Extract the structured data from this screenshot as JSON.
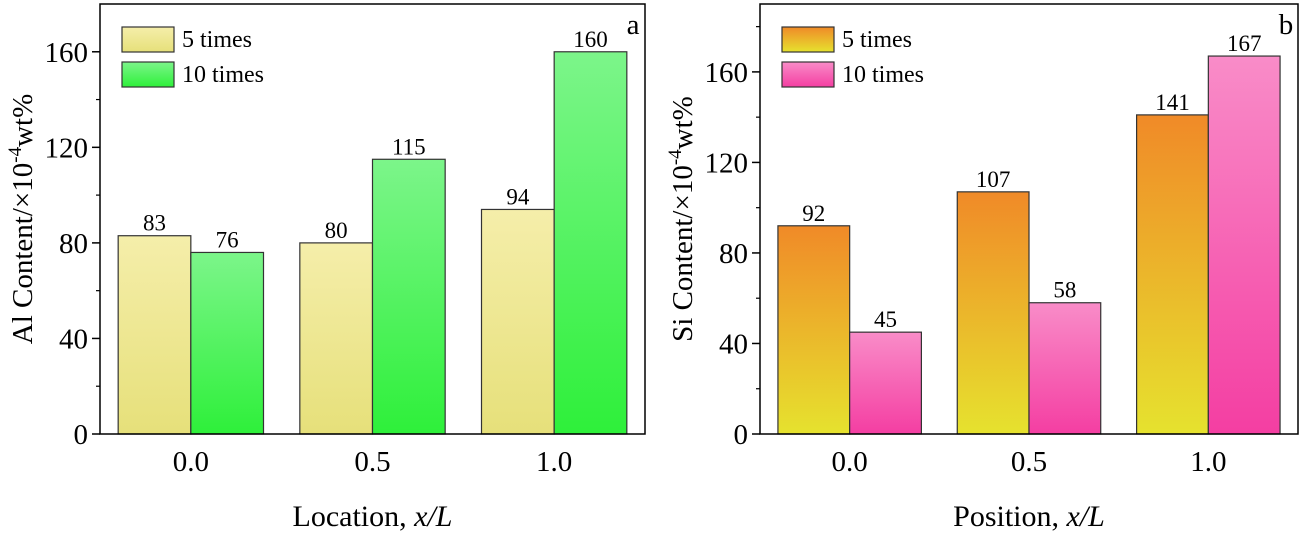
{
  "chart_data": [
    {
      "type": "bar",
      "panel_label": "a",
      "categories": [
        "0.0",
        "0.5",
        "1.0"
      ],
      "series": [
        {
          "name": "5 times",
          "values": [
            83,
            80,
            94
          ],
          "gradient": [
            "#f5eeaa",
            "#e6e07a"
          ]
        },
        {
          "name": "10 times",
          "values": [
            76,
            115,
            160
          ],
          "gradient": [
            "#7cf58a",
            "#2ef03a"
          ]
        }
      ],
      "data_labels": [
        "83",
        "80",
        "94",
        "76",
        "115",
        "160"
      ],
      "ylim": [
        0,
        180
      ],
      "yticks": [
        "0",
        "40",
        "80",
        "120",
        "160"
      ],
      "ylabel": "Al Content/×10",
      "ylabel_exp": "-4",
      "ylabel_unit": "wt%",
      "xlabel": "Location, ",
      "xlabel_var": "x/L",
      "legend_position": "top-left",
      "grid": false
    },
    {
      "type": "bar",
      "panel_label": "b",
      "categories": [
        "0.0",
        "0.5",
        "1.0"
      ],
      "series": [
        {
          "name": "5 times",
          "values": [
            92,
            107,
            141
          ],
          "gradient": [
            "#f08a28",
            "#e6e22e"
          ]
        },
        {
          "name": "10 times",
          "values": [
            45,
            58,
            167
          ],
          "gradient": [
            "#f98cc8",
            "#f43ea2"
          ]
        }
      ],
      "data_labels": [
        "92",
        "107",
        "141",
        "45",
        "58",
        "167"
      ],
      "ylim": [
        0,
        190
      ],
      "yticks": [
        "0",
        "40",
        "80",
        "120",
        "160"
      ],
      "ylabel": "Si Content/×10",
      "ylabel_exp": "-4",
      "ylabel_unit": "wt%",
      "xlabel": "Position, ",
      "xlabel_var": "x/L",
      "legend_position": "top-left",
      "grid": false
    }
  ]
}
